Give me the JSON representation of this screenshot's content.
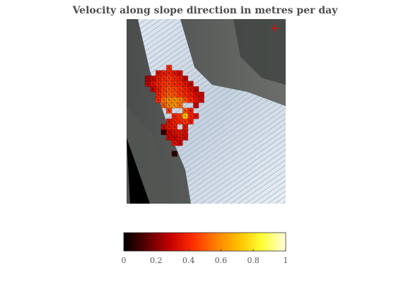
{
  "chart_data": {
    "type": "heatmap",
    "title": "Velocity along slope direction in metres per day",
    "colormap": [
      "#000000",
      "#5a0000",
      "#c00000",
      "#ff2a00",
      "#ff8000",
      "#ffc000",
      "#ffff33",
      "#ffffdd"
    ],
    "colorbar": {
      "ticks": [
        "0",
        "0.2",
        "0.4",
        "0.6",
        "0.8",
        "1"
      ],
      "range": [
        0,
        1
      ]
    },
    "marker": {
      "symbol": "+",
      "color": "#ff0000"
    },
    "grid_columns": 15,
    "grid_rows": 18,
    "cells": [
      {
        "r": 0,
        "c": 4,
        "v": 0.42
      },
      {
        "r": 1,
        "c": 2,
        "v": 0.35
      },
      {
        "r": 1,
        "c": 3,
        "v": 0.38
      },
      {
        "r": 1,
        "c": 4,
        "v": 0.4
      },
      {
        "r": 1,
        "c": 5,
        "v": 0.36
      },
      {
        "r": 1,
        "c": 6,
        "v": 0.32
      },
      {
        "r": 2,
        "c": 0,
        "v": 0.25
      },
      {
        "r": 2,
        "c": 1,
        "v": 0.3
      },
      {
        "r": 2,
        "c": 2,
        "v": 0.38
      },
      {
        "r": 2,
        "c": 3,
        "v": 0.42
      },
      {
        "r": 2,
        "c": 4,
        "v": 0.45
      },
      {
        "r": 2,
        "c": 5,
        "v": 0.41
      },
      {
        "r": 2,
        "c": 6,
        "v": 0.38
      },
      {
        "r": 2,
        "c": 7,
        "v": 0.3
      },
      {
        "r": 3,
        "c": 0,
        "v": 0.28
      },
      {
        "r": 3,
        "c": 1,
        "v": 0.35
      },
      {
        "r": 3,
        "c": 2,
        "v": 0.4
      },
      {
        "r": 3,
        "c": 3,
        "v": 0.44
      },
      {
        "r": 3,
        "c": 4,
        "v": 0.46
      },
      {
        "r": 3,
        "c": 5,
        "v": 0.43
      },
      {
        "r": 3,
        "c": 6,
        "v": 0.4
      },
      {
        "r": 3,
        "c": 7,
        "v": 0.36
      },
      {
        "r": 3,
        "c": 8,
        "v": 0.3
      },
      {
        "r": 4,
        "c": 1,
        "v": 0.3
      },
      {
        "r": 4,
        "c": 2,
        "v": 0.38
      },
      {
        "r": 4,
        "c": 3,
        "v": 0.45
      },
      {
        "r": 4,
        "c": 4,
        "v": 0.5
      },
      {
        "r": 4,
        "c": 5,
        "v": 0.48
      },
      {
        "r": 4,
        "c": 6,
        "v": 0.44
      },
      {
        "r": 4,
        "c": 7,
        "v": 0.4
      },
      {
        "r": 4,
        "c": 8,
        "v": 0.35
      },
      {
        "r": 4,
        "c": 9,
        "v": 0.28
      },
      {
        "r": 5,
        "c": 2,
        "v": 0.4
      },
      {
        "r": 5,
        "c": 3,
        "v": 0.47
      },
      {
        "r": 5,
        "c": 4,
        "v": 0.52
      },
      {
        "r": 5,
        "c": 5,
        "v": 0.5
      },
      {
        "r": 5,
        "c": 6,
        "v": 0.45
      },
      {
        "r": 5,
        "c": 7,
        "v": 0.42
      },
      {
        "r": 5,
        "c": 8,
        "v": 0.38
      },
      {
        "r": 5,
        "c": 9,
        "v": 0.33
      },
      {
        "r": 5,
        "c": 10,
        "v": 0.3
      },
      {
        "r": 6,
        "c": 2,
        "v": 0.42
      },
      {
        "r": 6,
        "c": 3,
        "v": 0.55
      },
      {
        "r": 6,
        "c": 4,
        "v": 0.6
      },
      {
        "r": 6,
        "c": 5,
        "v": 0.62
      },
      {
        "r": 6,
        "c": 6,
        "v": 0.58
      },
      {
        "r": 6,
        "c": 7,
        "v": 0.5
      },
      {
        "r": 6,
        "c": 8,
        "v": 0.42
      },
      {
        "r": 6,
        "c": 9,
        "v": 0.36
      },
      {
        "r": 6,
        "c": 10,
        "v": 0.32
      },
      {
        "r": 7,
        "c": 3,
        "v": 0.5
      },
      {
        "r": 7,
        "c": 4,
        "v": 0.6
      },
      {
        "r": 7,
        "c": 5,
        "v": 0.63
      },
      {
        "r": 7,
        "c": 6,
        "v": 0.55
      },
      {
        "r": 7,
        "c": 9,
        "v": 0.3
      },
      {
        "r": 8,
        "c": 4,
        "v": 0.45
      },
      {
        "r": 8,
        "c": 7,
        "v": 0.5
      },
      {
        "r": 8,
        "c": 8,
        "v": 0.4
      },
      {
        "r": 9,
        "c": 5,
        "v": 0.4
      },
      {
        "r": 9,
        "c": 6,
        "v": 0.45
      },
      {
        "r": 9,
        "c": 7,
        "v": 0.75
      },
      {
        "r": 9,
        "c": 8,
        "v": 0.42
      },
      {
        "r": 9,
        "c": 9,
        "v": 0.35
      },
      {
        "r": 10,
        "c": 4,
        "v": 0.35
      },
      {
        "r": 10,
        "c": 5,
        "v": 0.4
      },
      {
        "r": 10,
        "c": 6,
        "v": 0.42
      },
      {
        "r": 10,
        "c": 7,
        "v": 0.45
      },
      {
        "r": 10,
        "c": 8,
        "v": 0.38
      },
      {
        "r": 11,
        "c": 3,
        "v": 0.3
      },
      {
        "r": 11,
        "c": 4,
        "v": 0.36
      },
      {
        "r": 11,
        "c": 5,
        "v": 0.38
      },
      {
        "r": 11,
        "c": 7,
        "v": 0.36
      },
      {
        "r": 12,
        "c": 3,
        "v": 0.08
      },
      {
        "r": 12,
        "c": 4,
        "v": 0.3
      },
      {
        "r": 12,
        "c": 5,
        "v": 0.34
      },
      {
        "r": 12,
        "c": 6,
        "v": 0.36
      },
      {
        "r": 12,
        "c": 7,
        "v": 0.34
      },
      {
        "r": 13,
        "c": 4,
        "v": 0.3
      },
      {
        "r": 13,
        "c": 5,
        "v": 0.3
      },
      {
        "r": 13,
        "c": 6,
        "v": 0.34
      },
      {
        "r": 13,
        "c": 7,
        "v": 0.32
      },
      {
        "r": 14,
        "c": 5,
        "v": 0.35
      },
      {
        "r": 14,
        "c": 6,
        "v": 0.3
      },
      {
        "r": 16,
        "c": 5,
        "v": 0.06
      }
    ]
  }
}
